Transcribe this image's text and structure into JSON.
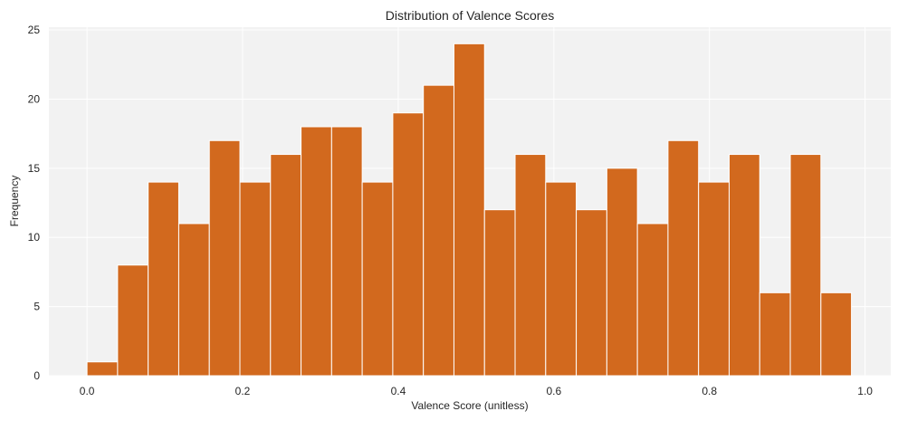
{
  "chart_data": {
    "type": "bar",
    "title": "Distribution of Valence Scores",
    "xlabel": "Valence Score (unitless)",
    "ylabel": "Frequency",
    "x_bin_start": 0.0,
    "bin_width": 0.0393,
    "bin_values": [
      1,
      8,
      14,
      11,
      17,
      14,
      16,
      18,
      18,
      14,
      19,
      21,
      24,
      12,
      16,
      14,
      12,
      15,
      11,
      17,
      14,
      16,
      6,
      16,
      6
    ],
    "xlim": [
      -0.049,
      1.033
    ],
    "ylim": [
      0,
      25.2
    ],
    "x_ticks": [
      0.0,
      0.2,
      0.4,
      0.6,
      0.8,
      1.0
    ],
    "x_tick_labels": [
      "0.0",
      "0.2",
      "0.4",
      "0.6",
      "0.8",
      "1.0"
    ],
    "y_ticks": [
      0,
      5,
      10,
      15,
      20,
      25
    ],
    "y_tick_labels": [
      "0",
      "5",
      "10",
      "15",
      "20",
      "25"
    ],
    "grid": true,
    "colors": {
      "bar": "#d2691e",
      "plot_background": "#f2f2f2",
      "grid": "#ffffff"
    }
  }
}
